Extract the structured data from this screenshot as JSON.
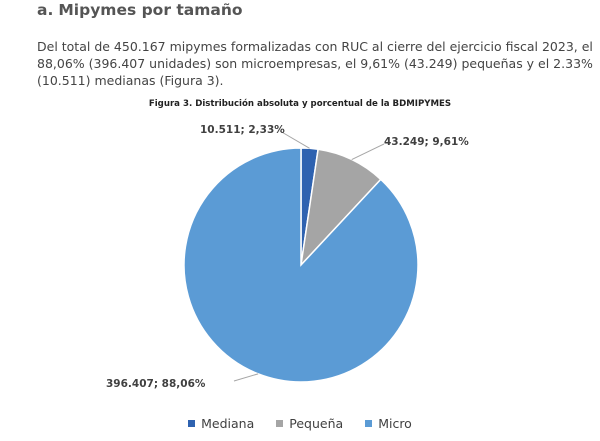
{
  "section": {
    "number": "a.",
    "title": "Mipymes por tamaño"
  },
  "paragraph": {
    "line1": "Del total de 450.167 mipymes formalizadas con RUC al cierre del ejercicio fiscal 2023, el",
    "line2": "88,06% (396.407 unidades) son microempresas, el 9,61% (43.249) pequeñas y el 2.33%",
    "line3": "(10.511) medianas (Figura 3)."
  },
  "chart_data": {
    "type": "pie",
    "title": "Figura 3. Distribución absoluta y porcentual de la BDMIPYMES",
    "slices": [
      {
        "name": "Mediana",
        "value": 10511,
        "percent": 2.33,
        "label": "10.511; 2,33%",
        "color": "#2e62b0"
      },
      {
        "name": "Pequeña",
        "value": 43249,
        "percent": 9.61,
        "label": "43.249; 9,61%",
        "color": "#a5a5a5"
      },
      {
        "name": "Micro",
        "value": 396407,
        "percent": 88.06,
        "label": "396.407; 88,06%",
        "color": "#5b9bd5"
      }
    ],
    "start_angle": "12 o'clock",
    "direction": "clockwise",
    "legend_position": "bottom"
  }
}
